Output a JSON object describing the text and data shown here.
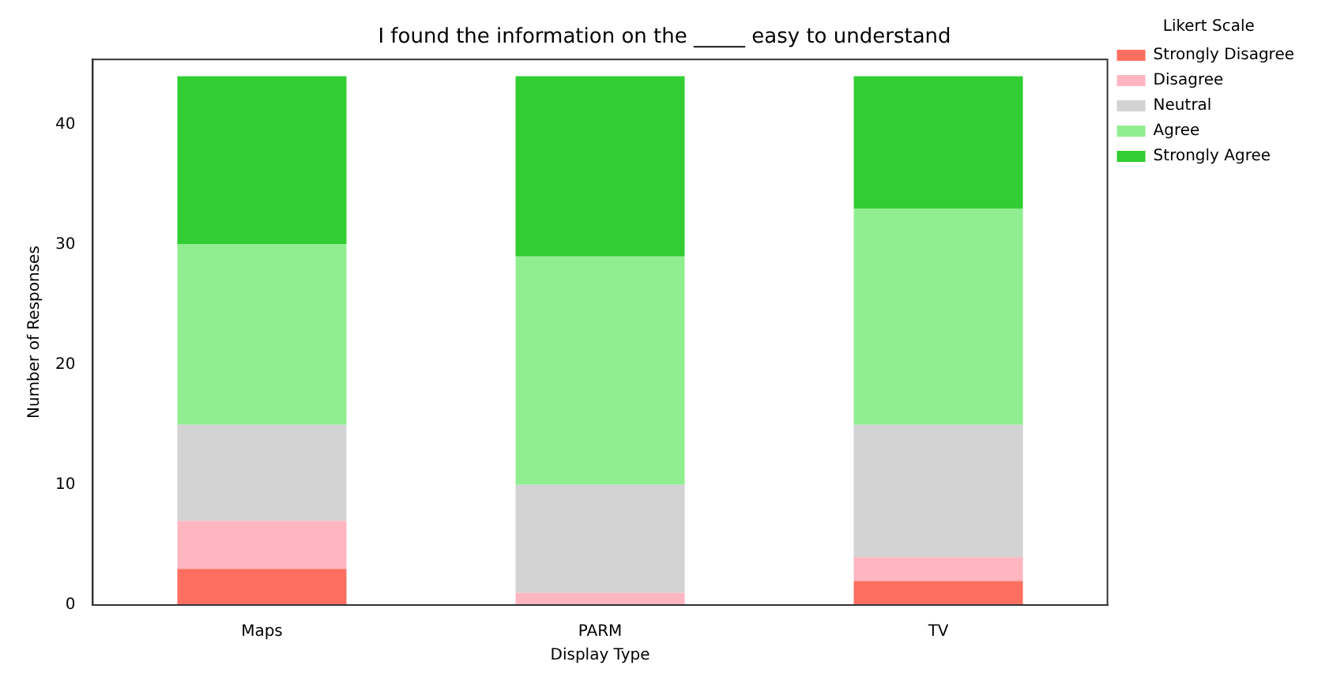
{
  "chart_data": {
    "type": "bar",
    "title": "I found the information on the _____ easy to understand",
    "xlabel": "Display Type",
    "ylabel": "Number of Responses",
    "legend_title": "Likert Scale",
    "categories": [
      "Maps",
      "PARM",
      "TV"
    ],
    "stacked": true,
    "series": [
      {
        "name": "Strongly Disagree",
        "color": "#ff6f61",
        "values": [
          3,
          0,
          2
        ]
      },
      {
        "name": "Disagree",
        "color": "#ffb6c1",
        "values": [
          4,
          1,
          2
        ]
      },
      {
        "name": "Neutral",
        "color": "#d3d3d3",
        "values": [
          8,
          9,
          11
        ]
      },
      {
        "name": "Agree",
        "color": "#90ee90",
        "values": [
          15,
          19,
          18
        ]
      },
      {
        "name": "Strongly Agree",
        "color": "#32cd32",
        "values": [
          14,
          15,
          11
        ]
      }
    ],
    "ylim": [
      0,
      45.4
    ],
    "yticks": [
      0,
      10,
      20,
      30,
      40
    ],
    "grid": false,
    "legend": "top right"
  }
}
